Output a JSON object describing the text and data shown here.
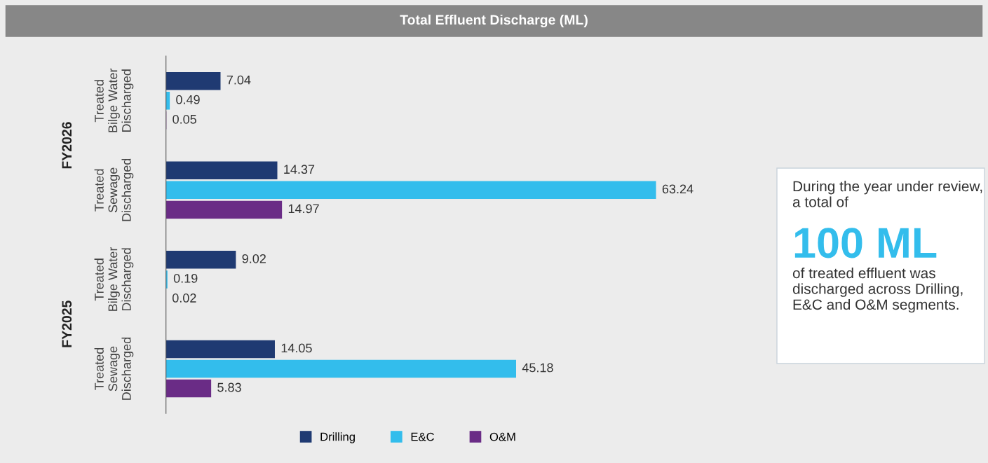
{
  "chart_data": {
    "type": "bar",
    "orientation": "horizontal",
    "title": "Total Effluent Discharge (ML)",
    "categories": [
      "Treated\nBilge Water\nDischarged",
      "Treated\nSewage\nDischarged",
      "Treated\nBilge Water\nDischarged",
      "Treated\nSewage\nDischarged"
    ],
    "series": [
      {
        "name": "Drilling",
        "color": "#1f3a72",
        "values": [
          7.04,
          14.37,
          9.02,
          14.05
        ]
      },
      {
        "name": "E&C",
        "color": "#33bdec",
        "values": [
          0.49,
          63.24,
          0.19,
          45.18
        ]
      },
      {
        "name": "O&M",
        "color": "#6a2c86",
        "values": [
          0.05,
          14.97,
          0.02,
          5.83
        ]
      }
    ],
    "data_labels": true,
    "legend": "bottom",
    "tick_labels": "y",
    "annotations": [
      "FY2026",
      "FY2025",
      "During the year under review, a total of",
      "100 ML",
      "of treated effluent was discharged across Drilling, E&C and O&M segments."
    ]
  }
}
